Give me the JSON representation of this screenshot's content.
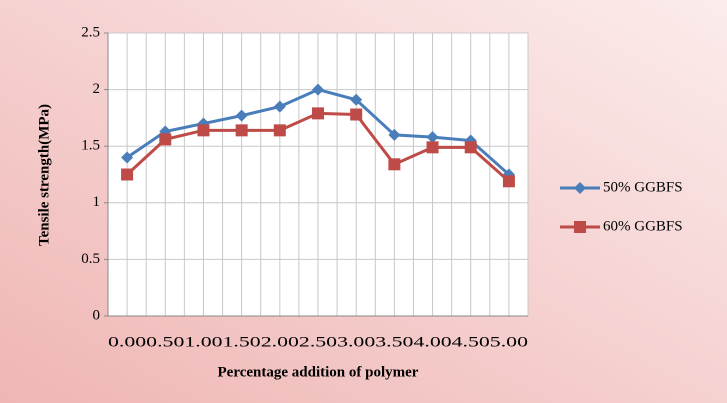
{
  "chart_data": {
    "type": "line",
    "x_label": "Percentage addition of polymer",
    "y_label": "Tensile strength(MPa)",
    "categories": [
      "0.00",
      "0.50",
      "1.00",
      "1.50",
      "2.00",
      "2.50",
      "3.00",
      "3.50",
      "4.00",
      "4.50",
      "5.00"
    ],
    "series": [
      {
        "name": "50% GGBFS",
        "color": "#4a7ebb",
        "marker": "diamond",
        "values": [
          1.4,
          1.63,
          1.7,
          1.77,
          1.85,
          2.0,
          1.91,
          1.6,
          1.58,
          1.55,
          1.25
        ]
      },
      {
        "name": "60% GGBFS",
        "color": "#be4b48",
        "marker": "square",
        "values": [
          1.25,
          1.56,
          1.64,
          1.64,
          1.64,
          1.79,
          1.78,
          1.34,
          1.49,
          1.49,
          1.19
        ]
      }
    ],
    "ylim": [
      0,
      2.5
    ],
    "yticks": [
      0,
      0.5,
      1,
      1.5,
      2,
      2.5
    ],
    "grid": true,
    "legend": "right"
  }
}
